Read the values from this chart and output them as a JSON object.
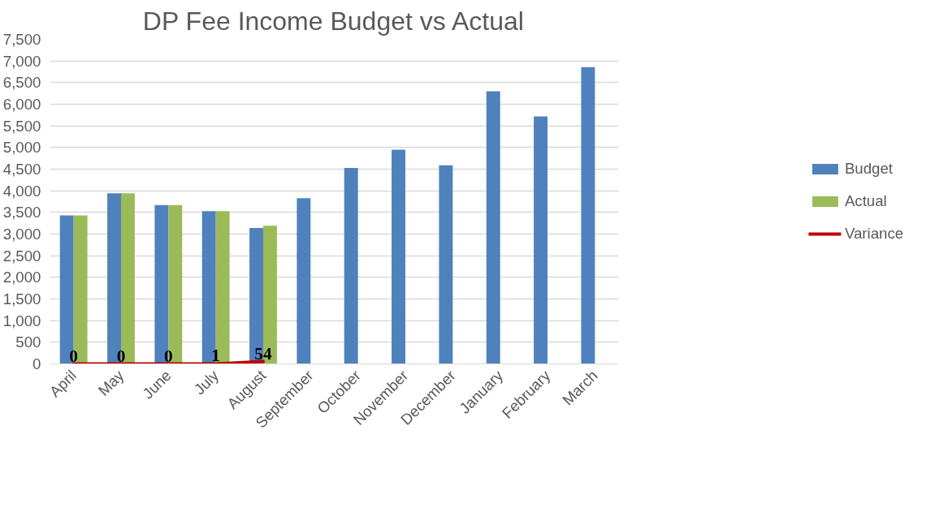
{
  "chart_data": {
    "type": "bar",
    "title": "DP Fee Income Budget vs Actual",
    "categories": [
      "April",
      "May",
      "June",
      "July",
      "August",
      "September",
      "October",
      "November",
      "December",
      "January",
      "February",
      "March"
    ],
    "series": [
      {
        "name": "Budget",
        "color": "#4f81bd",
        "values": [
          3430,
          3940,
          3670,
          3530,
          3140,
          3830,
          4530,
          4950,
          4590,
          6300,
          5720,
          6860
        ]
      },
      {
        "name": "Actual",
        "color": "#9bbb59",
        "values": [
          3430,
          3940,
          3670,
          3530,
          3190,
          null,
          null,
          null,
          null,
          null,
          null,
          null
        ]
      },
      {
        "name": "Variance",
        "type": "line",
        "color": "#c00000",
        "values": [
          0,
          0,
          0,
          1,
          54,
          null,
          null,
          null,
          null,
          null,
          null,
          null
        ],
        "value_labels": [
          "0",
          "0",
          "0",
          "1",
          "54",
          null,
          null,
          null,
          null,
          null,
          null,
          null
        ]
      }
    ],
    "ylim": [
      0,
      7500
    ],
    "yticks": [
      {
        "value": 0,
        "label": "0"
      },
      {
        "value": 500,
        "label": "500"
      },
      {
        "value": 1000,
        "label": "1,000"
      },
      {
        "value": 1500,
        "label": "1,500"
      },
      {
        "value": 2000,
        "label": "2,000"
      },
      {
        "value": 2500,
        "label": "2,500"
      },
      {
        "value": 3000,
        "label": "3,000"
      },
      {
        "value": 3500,
        "label": "3,500"
      },
      {
        "value": 4000,
        "label": "4,000"
      },
      {
        "value": 4500,
        "label": "4,500"
      },
      {
        "value": 5000,
        "label": "5,000"
      },
      {
        "value": 5500,
        "label": "5,500"
      },
      {
        "value": 6000,
        "label": "6,000"
      },
      {
        "value": 6500,
        "label": "6,500"
      },
      {
        "value": 7000,
        "label": "7,000"
      },
      {
        "value": 7500,
        "label": "7,500"
      }
    ],
    "grid": "y",
    "legend": "right"
  }
}
